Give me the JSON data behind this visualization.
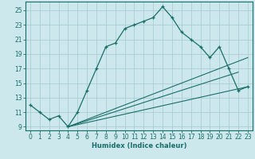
{
  "xlabel": "Humidex (Indice chaleur)",
  "bg_color": "#cce8ec",
  "grid_color": "#aacdd4",
  "line_color": "#1a6e6a",
  "xlim": [
    -0.5,
    23.5
  ],
  "ylim": [
    8.5,
    26.2
  ],
  "xticks": [
    0,
    1,
    2,
    3,
    4,
    5,
    6,
    7,
    8,
    9,
    10,
    11,
    12,
    13,
    14,
    15,
    16,
    17,
    18,
    19,
    20,
    21,
    22,
    23
  ],
  "yticks": [
    9,
    11,
    13,
    15,
    17,
    19,
    21,
    23,
    25
  ],
  "main_x": [
    0,
    1,
    2,
    3,
    4,
    5,
    6,
    7,
    8,
    9,
    10,
    11,
    12,
    13,
    14,
    15,
    16,
    17,
    18,
    19,
    20,
    21,
    22,
    23
  ],
  "main_y": [
    12.0,
    11.0,
    10.0,
    10.5,
    9.0,
    11.0,
    14.0,
    17.0,
    20.0,
    20.5,
    22.5,
    23.0,
    23.5,
    24.0,
    25.5,
    24.0,
    22.0,
    21.0,
    20.0,
    18.5,
    20.0,
    17.0,
    14.0,
    14.5
  ],
  "line2_x": [
    4,
    23
  ],
  "line2_y": [
    9.0,
    18.5
  ],
  "line3_x": [
    4,
    22
  ],
  "line3_y": [
    9.0,
    16.5
  ],
  "line4_x": [
    4,
    23
  ],
  "line4_y": [
    9.0,
    14.5
  ],
  "label_fontsize": 5.5,
  "xlabel_fontsize": 6.0
}
